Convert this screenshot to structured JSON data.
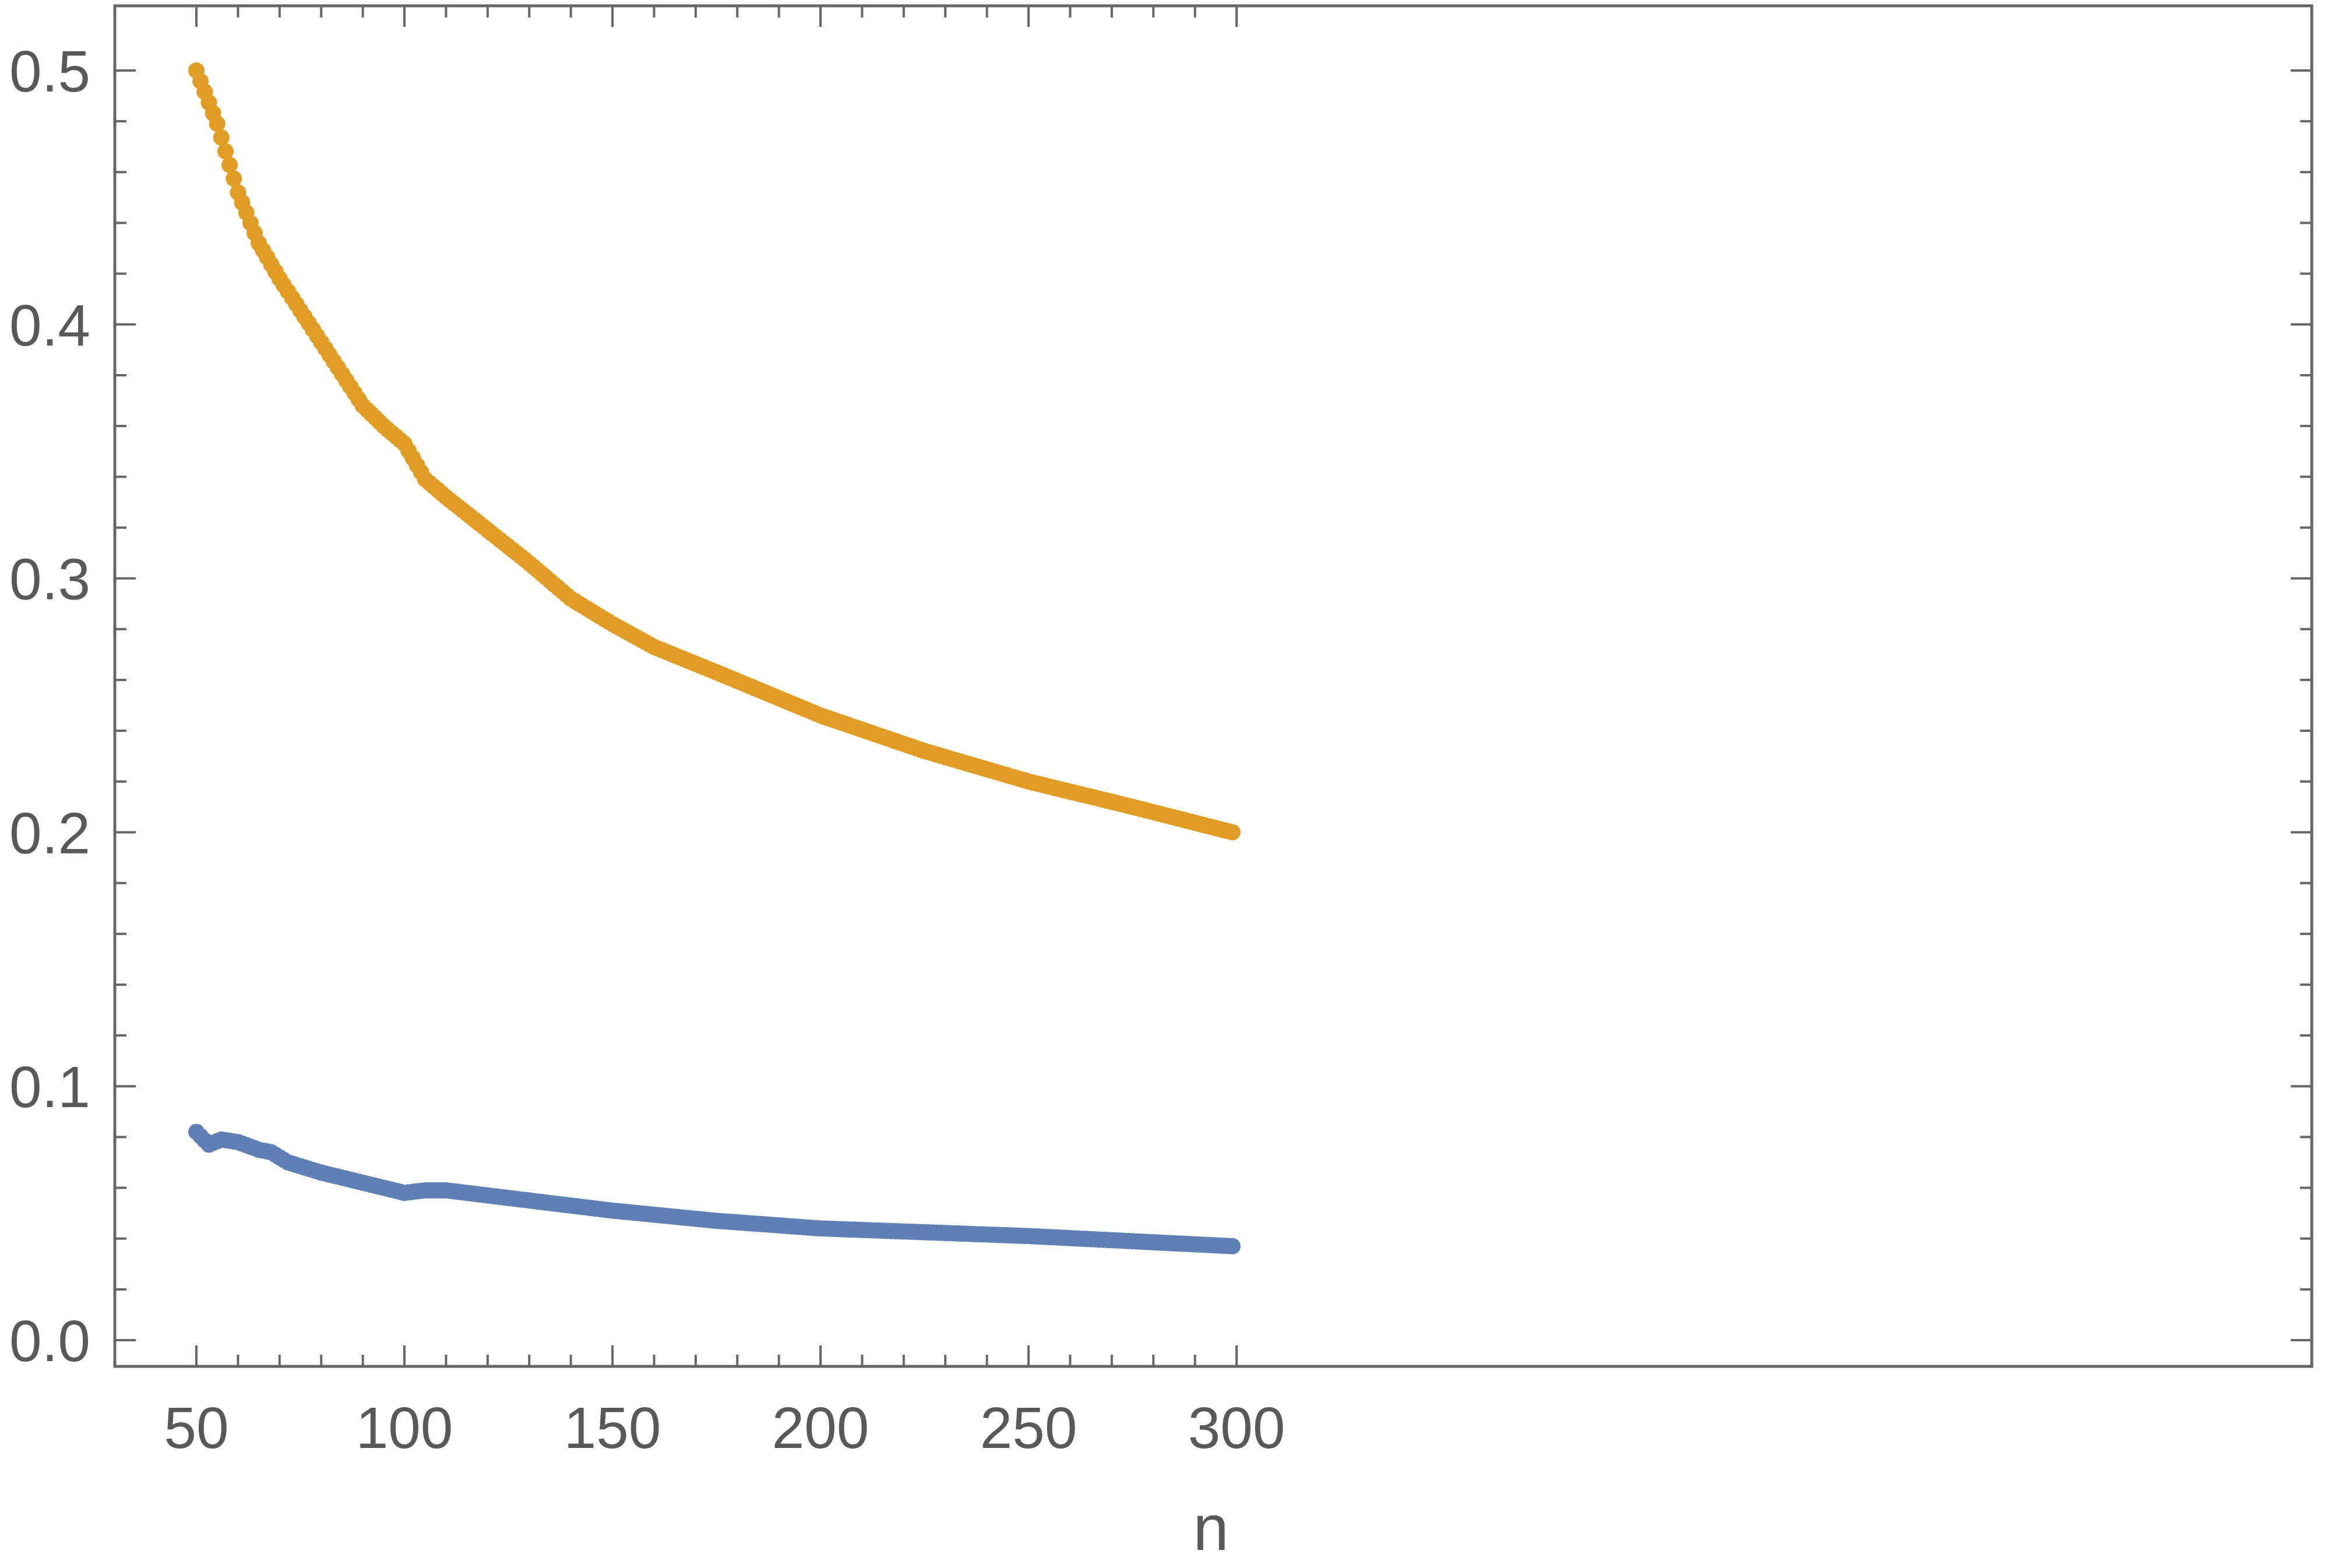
{
  "chart_data": {
    "type": "scatter",
    "title": "",
    "xlabel": "n",
    "ylabel": "",
    "xlim": [
      40,
      302
    ],
    "ylim": [
      -0.01,
      0.525
    ],
    "x_ticks": [
      "50",
      "100",
      "150",
      "200",
      "250",
      "300"
    ],
    "y_ticks": [
      "0.0",
      "0.1",
      "0.2",
      "0.3",
      "0.4",
      "0.5"
    ],
    "grid": false,
    "legend": "none",
    "x": {
      "start": 50,
      "end": 299,
      "step": 1
    },
    "series": [
      {
        "color": "#E19C24",
        "keypoints": [
          [
            50,
            0.5
          ],
          [
            55,
            0.479
          ],
          [
            60,
            0.452
          ],
          [
            65,
            0.432
          ],
          [
            70,
            0.418
          ],
          [
            80,
            0.393
          ],
          [
            90,
            0.368
          ],
          [
            95,
            0.36
          ],
          [
            100,
            0.353
          ],
          [
            105,
            0.339
          ],
          [
            110,
            0.332
          ],
          [
            120,
            0.319
          ],
          [
            130,
            0.306
          ],
          [
            140,
            0.292
          ],
          [
            150,
            0.282
          ],
          [
            160,
            0.273
          ],
          [
            175,
            0.263
          ],
          [
            200,
            0.246
          ],
          [
            225,
            0.232
          ],
          [
            250,
            0.22
          ],
          [
            275,
            0.21
          ],
          [
            299,
            0.2
          ]
        ]
      },
      {
        "color": "#5E81B5",
        "keypoints": [
          [
            50,
            0.082
          ],
          [
            53,
            0.077
          ],
          [
            56,
            0.079
          ],
          [
            60,
            0.078
          ],
          [
            65,
            0.075
          ],
          [
            68,
            0.074
          ],
          [
            72,
            0.07
          ],
          [
            80,
            0.066
          ],
          [
            90,
            0.062
          ],
          [
            100,
            0.058
          ],
          [
            105,
            0.059
          ],
          [
            110,
            0.059
          ],
          [
            120,
            0.057
          ],
          [
            140,
            0.053
          ],
          [
            150,
            0.051
          ],
          [
            175,
            0.047
          ],
          [
            200,
            0.044
          ],
          [
            250,
            0.041
          ],
          [
            299,
            0.037
          ]
        ]
      }
    ]
  }
}
